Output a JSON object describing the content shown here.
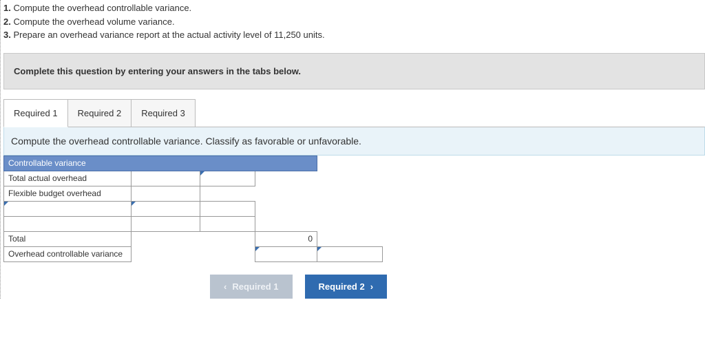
{
  "instructions": {
    "line1_num": "1.",
    "line1_text": " Compute the overhead controllable variance.",
    "line2_num": "2.",
    "line2_text": " Compute the overhead volume variance.",
    "line3_num": "3.",
    "line3_text": " Prepare an overhead variance report at the actual activity level of 11,250 units."
  },
  "prompt": "Complete this question by entering your answers in the tabs below.",
  "tabs": {
    "t1": "Required 1",
    "t2": "Required 2",
    "t3": "Required 3"
  },
  "sub_instruction": "Compute the overhead controllable variance. Classify as favorable or unfavorable.",
  "table": {
    "header": "Controllable variance",
    "row1": "Total actual overhead",
    "row2": "Flexible budget overhead",
    "row3": "",
    "row4": "",
    "row_total_label": "Total",
    "row_total_val": "0",
    "row_ovc": "Overhead controllable variance"
  },
  "nav": {
    "prev_label": "Required 1",
    "next_label": "Required 2"
  },
  "colors": {
    "header_bg": "#6a8ec8",
    "tri": "#3a6fb0",
    "btn_primary": "#2f6bb0",
    "btn_disabled": "#b9c3cf",
    "sub_bg": "#e9f3f9"
  }
}
